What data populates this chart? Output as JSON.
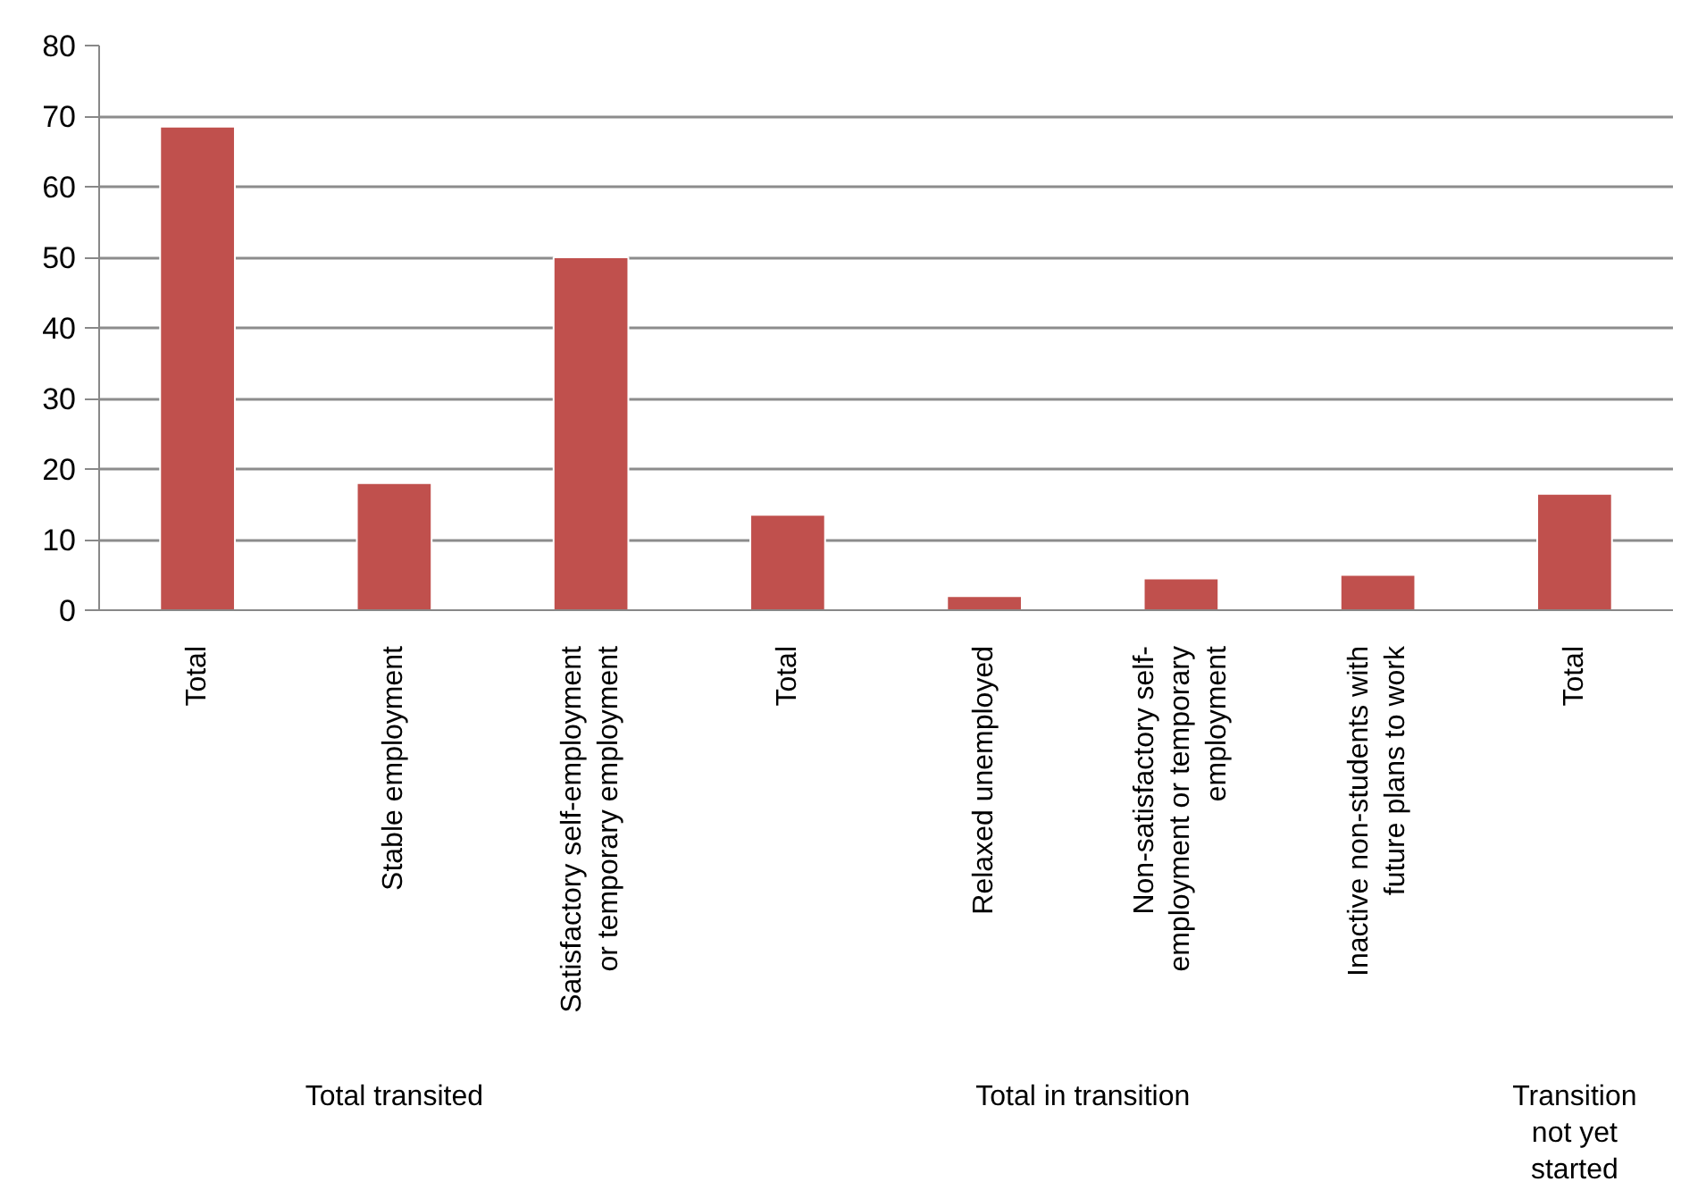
{
  "chart_data": {
    "type": "bar",
    "categories": [
      "Total",
      "Stable employment",
      "Satisfactory self-employment or temporary employment",
      "Total",
      "Relaxed unemployed",
      "Non-satisfactory self-employment or temporary employment",
      "Inactive non-students with future plans to work",
      "Total"
    ],
    "values": [
      68.5,
      18,
      50,
      13.5,
      2,
      4.5,
      5,
      16.5
    ],
    "color": "#c0504d",
    "ylim": [
      0,
      80
    ],
    "yticks": [
      0,
      10,
      20,
      30,
      40,
      50,
      60,
      70,
      80
    ],
    "grid": "y",
    "annotations": [
      "Total transited",
      "Total in transition",
      "Transition not yet started"
    ]
  }
}
